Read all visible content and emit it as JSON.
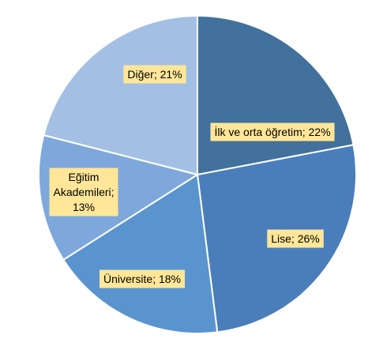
{
  "chart_data": {
    "type": "pie",
    "title": "",
    "legend": "none",
    "slices": [
      {
        "label": "İlk ve orta öğretim",
        "value": 22,
        "display": [
          "İlk ve orta öğretim; 22%"
        ],
        "color": "#41719c"
      },
      {
        "label": "Lise",
        "value": 26,
        "display": [
          "Lise; 26%"
        ],
        "color": "#4a7ebb"
      },
      {
        "label": "Üniversite",
        "value": 18,
        "display": [
          "Üniversite; 18%"
        ],
        "color": "#5a94cf"
      },
      {
        "label": "Eğitim Akademileri",
        "value": 13,
        "display": [
          "Eğitim",
          "Akademileri;",
          "13%"
        ],
        "color": "#7ea8dc"
      },
      {
        "label": "Diğer",
        "value": 21,
        "display": [
          "Diğer; 21%"
        ],
        "color": "#a3c0e4"
      }
    ],
    "label_box_color": "#ffe699"
  }
}
